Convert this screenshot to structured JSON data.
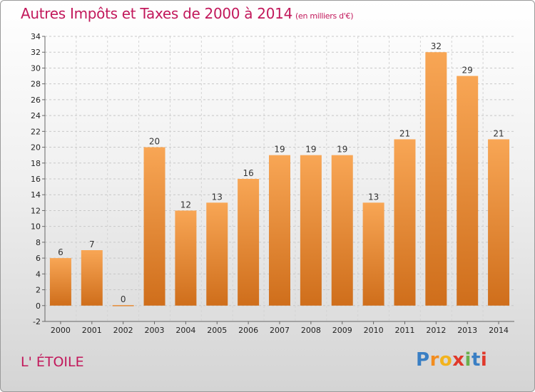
{
  "title": "Autres Impôts et Taxes de 2000 à 2014",
  "title_unit": "(en milliers d'€)",
  "commune": "L' ÉTOILE",
  "logo": {
    "letters": [
      "P",
      "r",
      "o",
      "x",
      "i",
      "t",
      "i"
    ],
    "colors": [
      "#3a7fc4",
      "#f28c1e",
      "#f2b31e",
      "#e0392b",
      "#6ab04c",
      "#3a7fc4",
      "#e0392b"
    ]
  },
  "colors": {
    "bar_top": "#f8a655",
    "bar_bottom": "#cf6e1b",
    "title": "#c2185b"
  },
  "chart_data": {
    "type": "bar",
    "categories": [
      "2000",
      "2001",
      "2002",
      "2003",
      "2004",
      "2005",
      "2006",
      "2007",
      "2008",
      "2009",
      "2010",
      "2011",
      "2012",
      "2013",
      "2014"
    ],
    "values": [
      6,
      7,
      0,
      20,
      12,
      13,
      16,
      19,
      19,
      19,
      13,
      21,
      32,
      29,
      21
    ],
    "data_labels": [
      "6",
      "7",
      "0",
      "20",
      "12",
      "13",
      "16",
      "19",
      "19",
      "19",
      "13",
      "21",
      "32",
      "29",
      "21"
    ],
    "ylim": [
      -2,
      34
    ],
    "yticks": [
      -2,
      0,
      2,
      4,
      6,
      8,
      10,
      12,
      14,
      16,
      18,
      20,
      22,
      24,
      26,
      28,
      30,
      32,
      34
    ],
    "grid": "horizontal dashed",
    "xlabel": "",
    "ylabel": ""
  }
}
